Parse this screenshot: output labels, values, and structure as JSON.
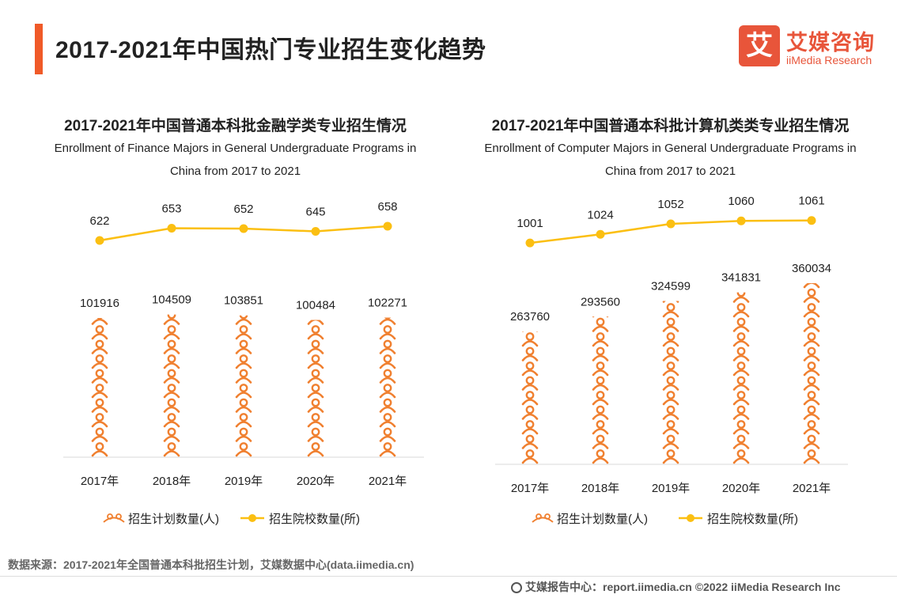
{
  "header": {
    "title": "2017-2021年中国热门专业招生变化趋势",
    "logo_icon": "艾",
    "logo_cn": "艾媒咨询",
    "logo_en": "iiMedia Research"
  },
  "colors": {
    "accent": "#f05a28",
    "person": "#f08030",
    "line": "#fbbf12"
  },
  "chart_data": [
    {
      "type": "bar+line",
      "title": "2017-2021年中国普通本科批金融学类专业招生情况",
      "subtitle_line1": "Enrollment of Finance Majors in General Undergraduate Programs in",
      "subtitle_line2": "China from 2017 to 2021",
      "categories": [
        "2017年",
        "2018年",
        "2019年",
        "2020年",
        "2021年"
      ],
      "series": [
        {
          "name": "招生计划数量(人)",
          "kind": "pictorial-bar",
          "values": [
            101916,
            104509,
            103851,
            100484,
            102271
          ]
        },
        {
          "name": "招生院校数量(所)",
          "kind": "line",
          "values": [
            622,
            653,
            652,
            645,
            658
          ]
        }
      ],
      "bar_ylim": [
        0,
        106000
      ],
      "line_ylim": [
        470,
        700
      ]
    },
    {
      "type": "bar+line",
      "title": "2017-2021年中国普通本科批计算机类类专业招生情况",
      "subtitle_line1": "Enrollment of Computer Majors in General Undergraduate Programs in",
      "subtitle_line2": "China from 2017 to 2021",
      "categories": [
        "2017年",
        "2018年",
        "2019年",
        "2020年",
        "2021年"
      ],
      "series": [
        {
          "name": "招生计划数量(人)",
          "kind": "pictorial-bar",
          "values": [
            263760,
            293560,
            324599,
            341831,
            360034
          ]
        },
        {
          "name": "招生院校数量(所)",
          "kind": "line",
          "values": [
            1001,
            1024,
            1052,
            1060,
            1061
          ]
        }
      ],
      "bar_ylim": [
        0,
        360034
      ],
      "line_ylim": [
        900,
        1090
      ]
    }
  ],
  "footer": {
    "source": "数据来源：2017-2021年全国普通本科批招生计划，艾媒数据中心(data.iimedia.cn)",
    "report": "艾媒报告中心：report.iimedia.cn  ©2022  iiMedia Research  Inc"
  }
}
